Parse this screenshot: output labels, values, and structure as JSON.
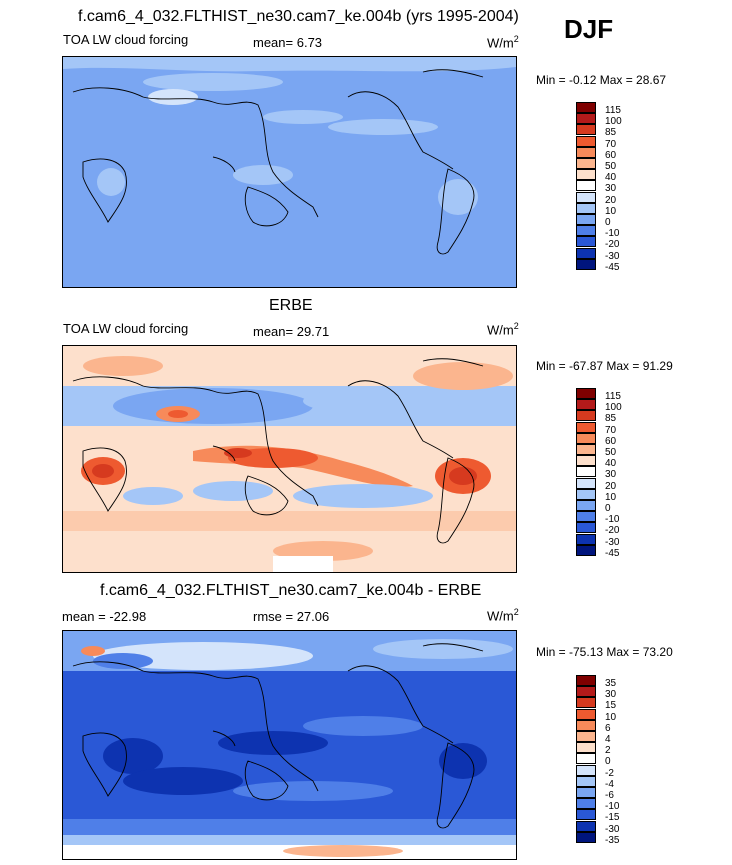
{
  "figure": {
    "season": "DJF"
  },
  "panels": [
    {
      "title": "f.cam6_4_032.FLTHIST_ne30.cam7_ke.004b (yrs 1995-2004)",
      "left_label": "TOA LW cloud forcing",
      "center_label": "mean=   6.73",
      "unit": "W/m",
      "unit_exp": "2",
      "minmax": "Min =  -0.12 Max =  28.67",
      "colorbar_levels": [
        "115",
        "100",
        "85",
        "70",
        "60",
        "50",
        "40",
        "30",
        "20",
        "10",
        "0",
        "-10",
        "-20",
        "-30",
        "-45"
      ]
    },
    {
      "title": "ERBE",
      "left_label": "TOA LW cloud forcing",
      "center_label": "mean=  29.71",
      "unit": "W/m",
      "unit_exp": "2",
      "minmax": "Min = -67.87 Max =  91.29",
      "colorbar_levels": [
        "115",
        "100",
        "85",
        "70",
        "60",
        "50",
        "40",
        "30",
        "20",
        "10",
        "0",
        "-10",
        "-20",
        "-30",
        "-45"
      ]
    },
    {
      "title": "f.cam6_4_032.FLTHIST_ne30.cam7_ke.004b - ERBE",
      "left_label": "mean = -22.98",
      "center_label": "rmse =  27.06",
      "unit": "W/m",
      "unit_exp": "2",
      "minmax": "Min = -75.13 Max =  73.20",
      "colorbar_levels": [
        "35",
        "30",
        "15",
        "10",
        "6",
        "4",
        "2",
        "0",
        "-2",
        "-4",
        "-6",
        "-10",
        "-15",
        "-30",
        "-35"
      ]
    }
  ],
  "chart_data": [
    {
      "type": "heatmap",
      "title": "f.cam6_4_032.FLTHIST_ne30.cam7_ke.004b (yrs 1995-2004)",
      "subtitle": "TOA LW cloud forcing",
      "units": "W/m2",
      "mean": 6.73,
      "min": -0.12,
      "max": 28.67,
      "colorbar_levels": [
        115,
        100,
        85,
        70,
        60,
        50,
        40,
        30,
        20,
        10,
        0,
        -10,
        -20,
        -30,
        -45
      ],
      "colors": [
        "#7f0000",
        "#b31a1a",
        "#d63a1f",
        "#ee5a30",
        "#f78a5a",
        "#fbb58e",
        "#fde0cc",
        "#ffffff",
        "#d4e4fb",
        "#a4c6f7",
        "#7aa6f2",
        "#4f7fe8",
        "#2a58d6",
        "#0d33b0",
        "#00157d"
      ]
    },
    {
      "type": "heatmap",
      "title": "ERBE",
      "subtitle": "TOA LW cloud forcing",
      "units": "W/m2",
      "mean": 29.71,
      "min": -67.87,
      "max": 91.29,
      "colorbar_levels": [
        115,
        100,
        85,
        70,
        60,
        50,
        40,
        30,
        20,
        10,
        0,
        -10,
        -20,
        -30,
        -45
      ],
      "colors": [
        "#7f0000",
        "#b31a1a",
        "#d63a1f",
        "#ee5a30",
        "#f78a5a",
        "#fbb58e",
        "#fde0cc",
        "#ffffff",
        "#d4e4fb",
        "#a4c6f7",
        "#7aa6f2",
        "#4f7fe8",
        "#2a58d6",
        "#0d33b0",
        "#00157d"
      ]
    },
    {
      "type": "heatmap",
      "title": "f.cam6_4_032.FLTHIST_ne30.cam7_ke.004b - ERBE",
      "units": "W/m2",
      "mean": -22.98,
      "rmse": 27.06,
      "min": -75.13,
      "max": 73.2,
      "colorbar_levels": [
        35,
        30,
        15,
        10,
        6,
        4,
        2,
        0,
        -2,
        -4,
        -6,
        -10,
        -15,
        -30,
        -35
      ],
      "colors": [
        "#7f0000",
        "#b31a1a",
        "#d63a1f",
        "#ee5a30",
        "#f78a5a",
        "#fbb58e",
        "#fde0cc",
        "#ffffff",
        "#d4e4fb",
        "#a4c6f7",
        "#7aa6f2",
        "#4f7fe8",
        "#2a58d6",
        "#0d33b0",
        "#00157d"
      ]
    }
  ]
}
